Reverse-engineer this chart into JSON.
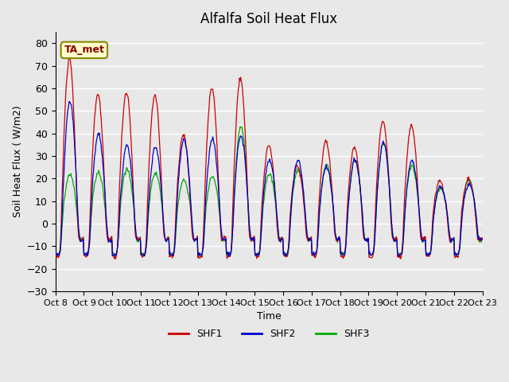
{
  "title": "Alfalfa Soil Heat Flux",
  "ylabel": "Soil Heat Flux ( W/m2)",
  "xlabel": "Time",
  "ylim": [
    -30,
    85
  ],
  "yticks": [
    -30,
    -20,
    -10,
    0,
    10,
    20,
    30,
    40,
    50,
    60,
    70,
    80
  ],
  "background_color": "#e8e8e8",
  "plot_bg_color": "#e8e8e8",
  "grid_color": "#ffffff",
  "colors": {
    "SHF1": "#cc0000",
    "SHF2": "#0000cc",
    "SHF3": "#00aa00"
  },
  "legend_label": "TA_met",
  "x_tick_labels": [
    "Oct 8",
    "Oct 9",
    "Oct 10",
    "Oct 11",
    "Oct 12",
    "Oct 13",
    "Oct 14",
    "Oct 15",
    "Oct 16",
    "Oct 17",
    "Oct 18",
    "Oct 19",
    "Oct 20",
    "Oct 21",
    "Oct 22",
    "Oct 23"
  ],
  "n_days": 15,
  "pts_per_day": 48
}
